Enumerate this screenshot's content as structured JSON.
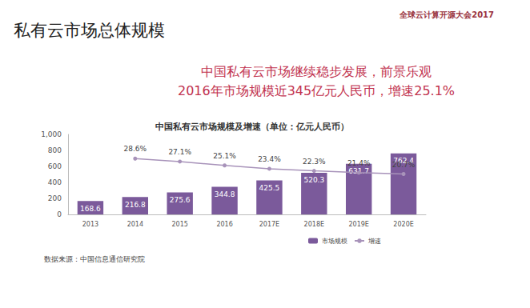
{
  "chart_data": {
    "type": "bar",
    "slide_title": "私有云市场总体规模",
    "logo_text": "全球云计算开源大会2017",
    "headline": [
      "中国私有云市场继续稳步发展，前景乐观",
      "2016年市场规模近345亿元人民币，增速25.1%"
    ],
    "title": "中国私有云市场规模及增速（单位：亿元人民币）",
    "source": "数据来源：中国信息通信研究院",
    "categories": [
      "2013",
      "2014",
      "2015",
      "2016",
      "2017E",
      "2018E",
      "2019E",
      "2020E"
    ],
    "series": [
      {
        "name": "市场规模",
        "type": "bar",
        "color": "#7b5a9b",
        "values": [
          168.6,
          216.8,
          275.6,
          344.8,
          425.5,
          520.3,
          631.7,
          762.4
        ]
      },
      {
        "name": "增速",
        "type": "line",
        "color": "#a893ba",
        "axis": "y2",
        "marker": "circle",
        "values": [
          null,
          28.6,
          27.1,
          25.1,
          23.4,
          22.3,
          21.4,
          20.7
        ],
        "value_labels": [
          null,
          "28.6%",
          "27.1%",
          "25.1%",
          "23.4%",
          "22.3%",
          "21.4%",
          "20.7%"
        ]
      }
    ],
    "ylim": [
      0,
      1000
    ],
    "yticks": [
      0,
      200,
      400,
      600,
      800,
      1000
    ],
    "y2lim": [
      0,
      41
    ],
    "grid": false,
    "legend": "bottom",
    "data_labels": true
  }
}
